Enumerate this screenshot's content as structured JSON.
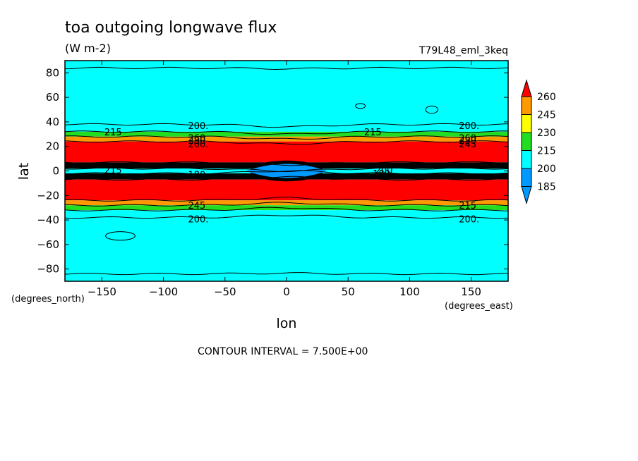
{
  "chart_data": {
    "type": "contour",
    "title": "toa outgoing longwave flux",
    "units": "(W m-2)",
    "run_label": "T79L48_eml_3keq",
    "xlabel": "lon",
    "ylabel": "lat",
    "x_units": "(degrees_east)",
    "y_units": "(degrees_north)",
    "xlim": [
      -180,
      180
    ],
    "ylim": [
      -90,
      90
    ],
    "x_ticks": [
      -150,
      -100,
      -50,
      0,
      50,
      100,
      150
    ],
    "y_ticks": [
      80,
      60,
      40,
      20,
      0,
      -20,
      -40,
      -60,
      -80
    ],
    "colorbar_levels": [
      260,
      245,
      230,
      215,
      200,
      185
    ],
    "colorbar_colors": [
      "#ff0000",
      "#ff9900",
      "#ffff00",
      "#22dd22",
      "#00ffff",
      "#0099ff"
    ],
    "footer": "CONTOUR INTERVAL = 7.500E+00",
    "contour_labels": [
      "215",
      "200.",
      "215",
      "200.",
      "200.",
      "200.",
      "200.",
      "260",
      "230",
      "245",
      "260",
      "230",
      "245",
      "215",
      "215",
      "180",
      "200",
      "180"
    ],
    "bands": [
      {
        "lat_from": 90,
        "lat_to": 38,
        "value": 195
      },
      {
        "lat_from": 38,
        "lat_to": 32,
        "value": 205
      },
      {
        "lat_from": 32,
        "lat_to": 28,
        "value": 222
      },
      {
        "lat_from": 28,
        "lat_to": 24,
        "value": 240
      },
      {
        "lat_from": 24,
        "lat_to": 7,
        "value": 265
      },
      {
        "lat_from": 7,
        "lat_to": 2,
        "value": 170
      },
      {
        "lat_from": 2,
        "lat_to": -2,
        "value": 195
      },
      {
        "lat_from": -2,
        "lat_to": -7,
        "value": 170
      },
      {
        "lat_from": -7,
        "lat_to": -24,
        "value": 265
      },
      {
        "lat_from": -24,
        "lat_to": -28,
        "value": 240
      },
      {
        "lat_from": -28,
        "lat_to": -32,
        "value": 222
      },
      {
        "lat_from": -32,
        "lat_to": -38,
        "value": 205
      },
      {
        "lat_from": -38,
        "lat_to": -90,
        "value": 195
      }
    ],
    "equatorial_blob": {
      "lon_from": -25,
      "lon_to": 25,
      "lat_from": -5,
      "lat_to": 5,
      "value": 188
    }
  }
}
